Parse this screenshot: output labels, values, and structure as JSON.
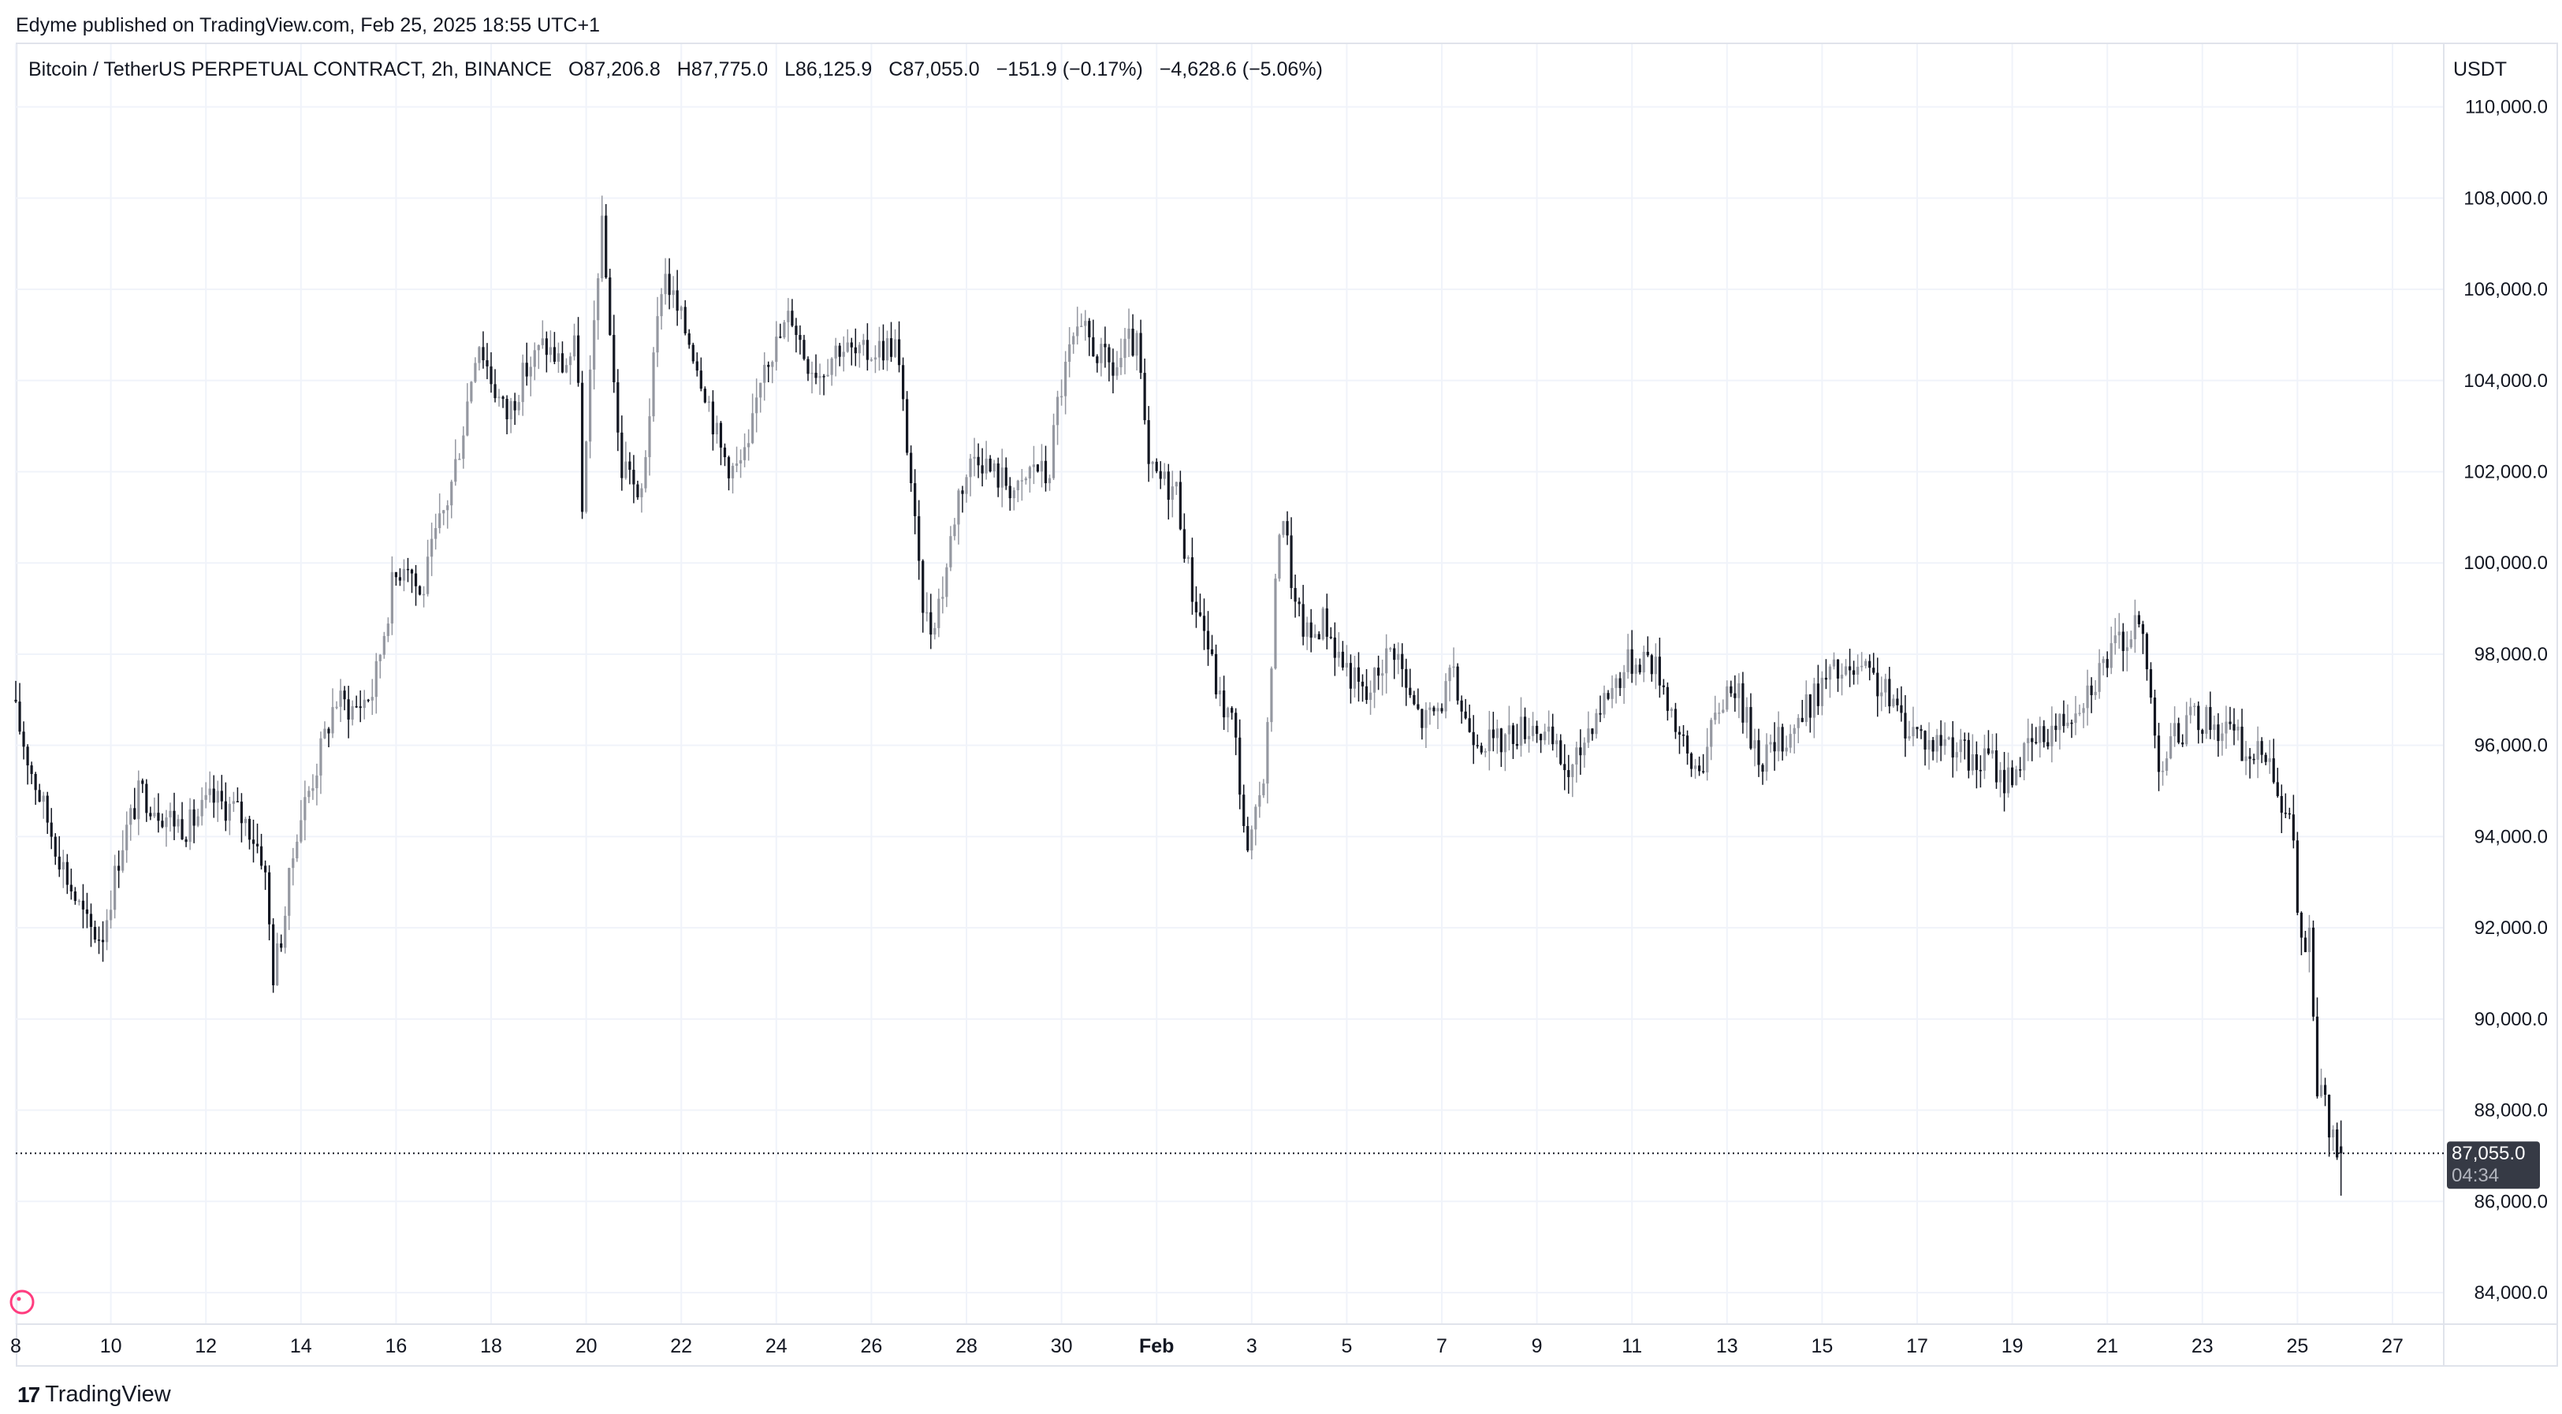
{
  "header": {
    "published": "Edyme published on TradingView.com, Feb 25, 2025 18:55 UTC+1"
  },
  "legend": {
    "symbol": "Bitcoin / TetherUS PERPETUAL CONTRACT, 2h, BINANCE",
    "open": "O87,206.8",
    "high": "H87,775.0",
    "low": "L86,125.9",
    "close": "C87,055.0",
    "change": "−151.9 (−0.17%)",
    "range_change": "−4,628.6 (−5.06%)"
  },
  "axis": {
    "currency": "USDT"
  },
  "last_price": {
    "value": "87,055.0",
    "countdown": "04:34"
  },
  "footer": {
    "logo_mark": "17",
    "logo_text": "TradingView"
  },
  "colors": {
    "up_candle": "#9598a1",
    "down_candle": "#131722",
    "grid": "#f0f3fa",
    "label_bg": "#363a45"
  },
  "chart_data": {
    "type": "candlestick",
    "title": "Bitcoin / TetherUS PERPETUAL CONTRACT, 2h, BINANCE",
    "interval": "2h",
    "ylim": [
      83000,
      110500
    ],
    "xlim": [
      "Jan 8 00:00",
      "Feb 27 12:00"
    ],
    "y_ticks": [
      {
        "value": 110000,
        "label": "110,000.0"
      },
      {
        "value": 108000,
        "label": "108,000.0"
      },
      {
        "value": 106000,
        "label": "106,000.0"
      },
      {
        "value": 104000,
        "label": "104,000.0"
      },
      {
        "value": 102000,
        "label": "102,000.0"
      },
      {
        "value": 100000,
        "label": "100,000.0"
      },
      {
        "value": 98000,
        "label": "98,000.0"
      },
      {
        "value": 96000,
        "label": "96,000.0"
      },
      {
        "value": 94000,
        "label": "94,000.0"
      },
      {
        "value": 92000,
        "label": "92,000.0"
      },
      {
        "value": 90000,
        "label": "90,000.0"
      },
      {
        "value": 88000,
        "label": "88,000.0"
      },
      {
        "value": 86000,
        "label": "86,000.0"
      },
      {
        "value": 84000,
        "label": "84,000.0"
      }
    ],
    "x_ticks": [
      {
        "day": 8,
        "label": "8"
      },
      {
        "day": 10,
        "label": "10"
      },
      {
        "day": 12,
        "label": "12"
      },
      {
        "day": 14,
        "label": "14"
      },
      {
        "day": 16,
        "label": "16"
      },
      {
        "day": 18,
        "label": "18"
      },
      {
        "day": 20,
        "label": "20"
      },
      {
        "day": 22,
        "label": "22"
      },
      {
        "day": 24,
        "label": "24"
      },
      {
        "day": 26,
        "label": "26"
      },
      {
        "day": 28,
        "label": "28"
      },
      {
        "day": 30,
        "label": "30"
      },
      {
        "day": 32,
        "label": "Feb",
        "bold": true
      },
      {
        "day": 34,
        "label": "3"
      },
      {
        "day": 36,
        "label": "5"
      },
      {
        "day": 38,
        "label": "7"
      },
      {
        "day": 40,
        "label": "9"
      },
      {
        "day": 42,
        "label": "11"
      },
      {
        "day": 44,
        "label": "13"
      },
      {
        "day": 46,
        "label": "15"
      },
      {
        "day": 48,
        "label": "17"
      },
      {
        "day": 50,
        "label": "19"
      },
      {
        "day": 52,
        "label": "21"
      },
      {
        "day": 54,
        "label": "23"
      },
      {
        "day": 56,
        "label": "25"
      },
      {
        "day": 58,
        "label": "27"
      }
    ],
    "last_close": 87055.0,
    "path": [
      [
        8.0,
        97000
      ],
      [
        8.4,
        95500
      ],
      [
        8.8,
        94200
      ],
      [
        9.2,
        93000
      ],
      [
        9.6,
        92000
      ],
      [
        9.9,
        91800
      ],
      [
        10.3,
        93800
      ],
      [
        10.7,
        95000
      ],
      [
        11.2,
        94500
      ],
      [
        11.7,
        94200
      ],
      [
        12.2,
        94800
      ],
      [
        12.7,
        94600
      ],
      [
        13.0,
        94200
      ],
      [
        13.3,
        93500
      ],
      [
        13.5,
        91000
      ],
      [
        13.7,
        92000
      ],
      [
        14.0,
        94200
      ],
      [
        14.4,
        95500
      ],
      [
        14.8,
        97000
      ],
      [
        15.2,
        96800
      ],
      [
        15.6,
        97200
      ],
      [
        16.0,
        99500
      ],
      [
        16.3,
        100200
      ],
      [
        16.6,
        99200
      ],
      [
        16.9,
        100500
      ],
      [
        17.2,
        101500
      ],
      [
        17.5,
        103000
      ],
      [
        17.8,
        105000
      ],
      [
        18.1,
        104000
      ],
      [
        18.4,
        103200
      ],
      [
        18.8,
        104200
      ],
      [
        19.2,
        104800
      ],
      [
        19.6,
        104300
      ],
      [
        19.9,
        104800
      ],
      [
        20.0,
        101000
      ],
      [
        20.2,
        104500
      ],
      [
        20.4,
        107500
      ],
      [
        20.6,
        105000
      ],
      [
        20.8,
        102000
      ],
      [
        21.0,
        102200
      ],
      [
        21.2,
        101000
      ],
      [
        21.4,
        103200
      ],
      [
        21.7,
        106500
      ],
      [
        22.0,
        105500
      ],
      [
        22.3,
        104800
      ],
      [
        22.6,
        103800
      ],
      [
        22.9,
        102500
      ],
      [
        23.2,
        102000
      ],
      [
        23.5,
        102400
      ],
      [
        23.8,
        104500
      ],
      [
        24.1,
        104800
      ],
      [
        24.4,
        105500
      ],
      [
        24.7,
        104500
      ],
      [
        25.0,
        104200
      ],
      [
        25.4,
        104800
      ],
      [
        25.8,
        104500
      ],
      [
        26.2,
        104700
      ],
      [
        26.6,
        104800
      ],
      [
        26.9,
        102000
      ],
      [
        27.1,
        99500
      ],
      [
        27.3,
        98500
      ],
      [
        27.6,
        99500
      ],
      [
        27.9,
        101500
      ],
      [
        28.3,
        102500
      ],
      [
        28.6,
        102000
      ],
      [
        28.9,
        101800
      ],
      [
        29.2,
        101500
      ],
      [
        29.5,
        102200
      ],
      [
        29.8,
        101800
      ],
      [
        30.0,
        103500
      ],
      [
        30.3,
        104800
      ],
      [
        30.6,
        105000
      ],
      [
        30.9,
        104500
      ],
      [
        31.2,
        104200
      ],
      [
        31.5,
        104800
      ],
      [
        31.7,
        104700
      ],
      [
        31.9,
        102000
      ],
      [
        32.2,
        101800
      ],
      [
        32.5,
        101600
      ],
      [
        32.8,
        99500
      ],
      [
        33.1,
        98500
      ],
      [
        33.4,
        97000
      ],
      [
        33.7,
        96500
      ],
      [
        34.0,
        93500
      ],
      [
        34.2,
        94500
      ],
      [
        34.4,
        96000
      ],
      [
        34.7,
        101500
      ],
      [
        35.0,
        99000
      ],
      [
        35.3,
        98300
      ],
      [
        35.6,
        98800
      ],
      [
        35.9,
        98000
      ],
      [
        36.2,
        97500
      ],
      [
        36.5,
        97000
      ],
      [
        36.8,
        97800
      ],
      [
        37.1,
        98200
      ],
      [
        37.4,
        97000
      ],
      [
        37.7,
        96500
      ],
      [
        38.0,
        96800
      ],
      [
        38.3,
        97500
      ],
      [
        38.6,
        96500
      ],
      [
        38.9,
        96200
      ],
      [
        39.2,
        96000
      ],
      [
        39.6,
        96300
      ],
      [
        40.0,
        96500
      ],
      [
        40.4,
        96000
      ],
      [
        40.8,
        95300
      ],
      [
        41.2,
        96500
      ],
      [
        41.6,
        97200
      ],
      [
        42.0,
        97800
      ],
      [
        42.4,
        98000
      ],
      [
        42.7,
        97500
      ],
      [
        43.0,
        96500
      ],
      [
        43.3,
        95500
      ],
      [
        43.6,
        95700
      ],
      [
        43.9,
        96800
      ],
      [
        44.2,
        97500
      ],
      [
        44.5,
        96500
      ],
      [
        44.8,
        95700
      ],
      [
        45.1,
        96000
      ],
      [
        45.4,
        96300
      ],
      [
        45.7,
        96700
      ],
      [
        46.0,
        97200
      ],
      [
        46.3,
        97600
      ],
      [
        46.6,
        97500
      ],
      [
        46.9,
        97600
      ],
      [
        47.2,
        97400
      ],
      [
        47.5,
        97000
      ],
      [
        47.8,
        96500
      ],
      [
        48.1,
        96300
      ],
      [
        48.4,
        96000
      ],
      [
        48.7,
        96200
      ],
      [
        49.0,
        95900
      ],
      [
        49.3,
        95500
      ],
      [
        49.6,
        95800
      ],
      [
        49.9,
        95200
      ],
      [
        50.2,
        95600
      ],
      [
        50.5,
        96000
      ],
      [
        50.8,
        96300
      ],
      [
        51.1,
        96500
      ],
      [
        51.4,
        96900
      ],
      [
        51.7,
        97300
      ],
      [
        52.0,
        97800
      ],
      [
        52.3,
        98200
      ],
      [
        52.6,
        98500
      ],
      [
        52.8,
        98600
      ],
      [
        53.0,
        97000
      ],
      [
        53.2,
        95500
      ],
      [
        53.5,
        96200
      ],
      [
        53.8,
        96500
      ],
      [
        54.1,
        96600
      ],
      [
        54.4,
        96400
      ],
      [
        54.7,
        96300
      ],
      [
        55.0,
        95800
      ],
      [
        55.2,
        95700
      ],
      [
        55.4,
        96000
      ],
      [
        55.6,
        95500
      ],
      [
        55.8,
        94500
      ],
      [
        56.0,
        94000
      ],
      [
        56.1,
        92000
      ],
      [
        56.2,
        91500
      ],
      [
        56.35,
        91800
      ],
      [
        56.45,
        89000
      ],
      [
        56.55,
        88000
      ],
      [
        56.65,
        88800
      ],
      [
        56.75,
        87500
      ],
      [
        56.85,
        87206.8
      ],
      [
        56.92,
        87055.0
      ]
    ],
    "candles": []
  }
}
